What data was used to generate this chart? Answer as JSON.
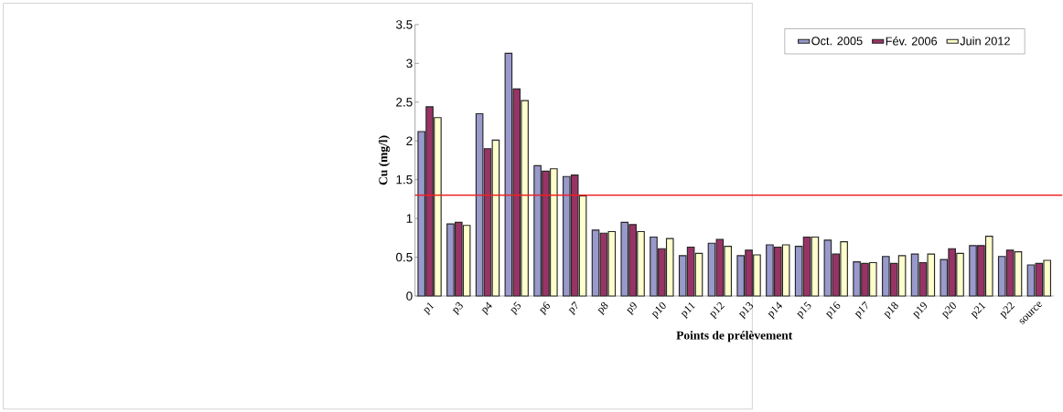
{
  "chart_data": {
    "type": "bar",
    "xlabel": "Points de prélèvement",
    "ylabel": "Cu (mg/l)",
    "categories": [
      "p1",
      "p3",
      "p4",
      "p5",
      "p6",
      "p7",
      "p8",
      "p9",
      "p10",
      "p11",
      "p12",
      "p13",
      "p14",
      "p15",
      "p16",
      "p17",
      "p18",
      "p19",
      "p20",
      "p21",
      "p22",
      "source"
    ],
    "series": [
      {
        "name": "Oct. 2005",
        "color": "#9999cc",
        "values": [
          2.12,
          0.93,
          2.35,
          3.13,
          1.68,
          1.54,
          0.85,
          0.95,
          0.76,
          0.52,
          0.68,
          0.52,
          0.66,
          0.64,
          0.72,
          0.44,
          0.51,
          0.54,
          0.47,
          0.65,
          0.51,
          0.4
        ]
      },
      {
        "name": "Fév. 2006",
        "color": "#993366",
        "values": [
          2.44,
          0.95,
          1.9,
          2.67,
          1.61,
          1.56,
          0.81,
          0.92,
          0.61,
          0.63,
          0.73,
          0.59,
          0.63,
          0.76,
          0.54,
          0.42,
          0.42,
          0.43,
          0.61,
          0.65,
          0.59,
          0.42
        ]
      },
      {
        "name": "Juin 2012",
        "color": "#ffffcc",
        "values": [
          2.3,
          0.91,
          2.01,
          2.52,
          1.64,
          1.29,
          0.83,
          0.83,
          0.74,
          0.55,
          0.64,
          0.53,
          0.66,
          0.76,
          0.7,
          0.43,
          0.52,
          0.54,
          0.55,
          0.77,
          0.57,
          0.46
        ]
      }
    ],
    "ylim": [
      0,
      3.5
    ],
    "yticks": [
      0,
      0.5,
      1,
      1.5,
      2,
      2.5,
      3,
      3.5
    ],
    "ref_lines": [
      {
        "axis": "y",
        "value": 1.3,
        "color": "#ee2222"
      }
    ],
    "legend": "top right"
  }
}
